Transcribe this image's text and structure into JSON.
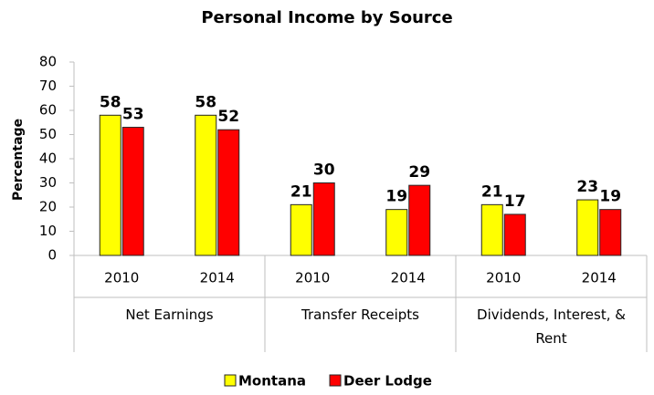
{
  "chart_data": {
    "type": "bar",
    "title": "Personal Income by Source",
    "y_label": "Percentage",
    "categories": [
      "2010",
      "2014",
      "2010",
      "2014",
      "2010",
      "2014"
    ],
    "groups": [
      "Net Earnings",
      "Transfer Receipts",
      "Dividends, Interest, & Rent"
    ],
    "series": [
      {
        "name": "Montana",
        "color": "#ffff00",
        "values": [
          58,
          58,
          21,
          19,
          21,
          23
        ]
      },
      {
        "name": "Deer Lodge",
        "color": "#ff0000",
        "values": [
          53,
          52,
          30,
          29,
          17,
          19
        ]
      }
    ],
    "ylim": [
      0,
      80
    ],
    "yticks": [
      0,
      10,
      20,
      30,
      40,
      50,
      60,
      70,
      80
    ],
    "legend": "bottom"
  }
}
